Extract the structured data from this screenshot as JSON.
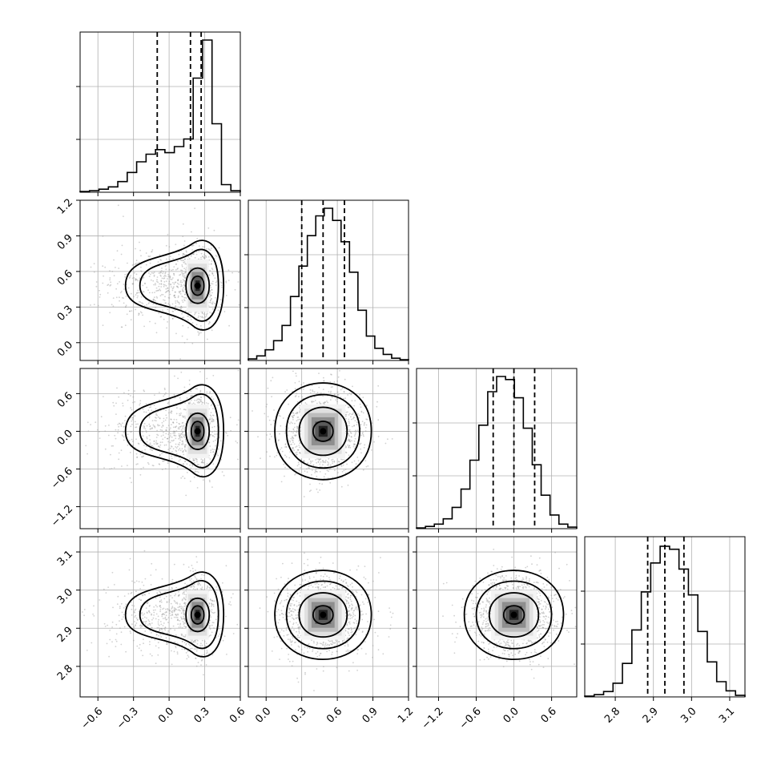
{
  "chart_data": {
    "type": "corner",
    "params": 4,
    "grid": true,
    "axes": [
      {
        "range": [
          -0.75,
          0.6
        ],
        "ticks": [
          -0.6,
          -0.3,
          0.0,
          0.3,
          0.6
        ],
        "tick_labels": [
          "−0.6",
          "−0.3",
          "0.0",
          "0.3",
          "0.6"
        ],
        "quantiles": [
          -0.1,
          0.18,
          0.27
        ]
      },
      {
        "range": [
          -0.15,
          1.2
        ],
        "ticks": [
          0.0,
          0.3,
          0.6,
          0.9,
          1.2
        ],
        "tick_labels": [
          "0.0",
          "0.3",
          "0.6",
          "0.9",
          "1.2"
        ],
        "quantiles": [
          0.3,
          0.48,
          0.66
        ]
      },
      {
        "range": [
          -1.55,
          1.0
        ],
        "ticks": [
          -1.2,
          -0.6,
          0.0,
          0.6
        ],
        "tick_labels": [
          "−1.2",
          "−0.6",
          "0.0",
          "0.6"
        ],
        "quantiles": [
          -0.33,
          0.0,
          0.33
        ]
      },
      {
        "range": [
          2.72,
          3.14
        ],
        "ticks": [
          2.8,
          2.9,
          3.0,
          3.1
        ],
        "tick_labels": [
          "2.8",
          "2.9",
          "3.0",
          "3.1"
        ],
        "quantiles": [
          2.885,
          2.93,
          2.98
        ]
      }
    ],
    "histograms": [
      [
        0.005,
        0.01,
        0.02,
        0.035,
        0.07,
        0.13,
        0.2,
        0.25,
        0.28,
        0.26,
        0.3,
        0.35,
        0.75,
        1.0,
        0.45,
        0.05,
        0.01
      ],
      [
        0.01,
        0.03,
        0.07,
        0.13,
        0.23,
        0.42,
        0.62,
        0.82,
        0.95,
        1.0,
        0.92,
        0.78,
        0.58,
        0.33,
        0.16,
        0.08,
        0.04,
        0.015,
        0.005
      ],
      [
        0.005,
        0.015,
        0.03,
        0.065,
        0.14,
        0.26,
        0.45,
        0.68,
        0.9,
        1.0,
        0.98,
        0.86,
        0.66,
        0.42,
        0.22,
        0.09,
        0.03,
        0.01
      ],
      [
        0.005,
        0.015,
        0.035,
        0.09,
        0.22,
        0.44,
        0.69,
        0.88,
        0.99,
        0.97,
        0.84,
        0.67,
        0.43,
        0.23,
        0.1,
        0.04,
        0.01
      ]
    ],
    "hist_ranges": [
      [
        -0.75,
        0.6
      ],
      [
        -0.15,
        1.2
      ],
      [
        -1.55,
        1.0
      ],
      [
        2.72,
        3.14
      ]
    ]
  }
}
